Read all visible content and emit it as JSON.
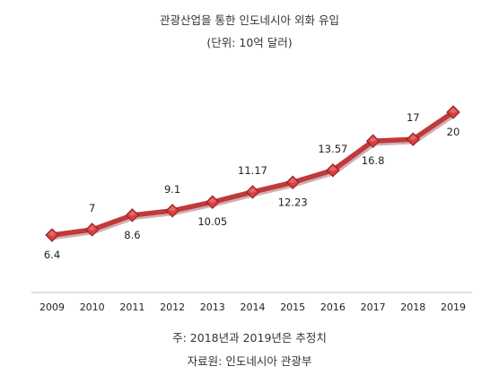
{
  "header": {
    "title": "관광산업을 통한 인도네시아 외화 유입",
    "subtitle": "(단위: 10억 달러)"
  },
  "footer": {
    "note": "주: 2018년과 2019년은 추정치",
    "source": "자료원: 인도네시아 관광부"
  },
  "chart_data": {
    "type": "line",
    "title": "관광산업을 통한 인도네시아 외화 유입",
    "subtitle": "(단위: 10억 달러)",
    "categories": [
      "2009",
      "2010",
      "2011",
      "2012",
      "2013",
      "2014",
      "2015",
      "2016",
      "2017",
      "2018",
      "2019"
    ],
    "series": [
      {
        "values": [
          6.4,
          7,
          8.6,
          9.1,
          10.05,
          11.17,
          12.23,
          13.57,
          16.8,
          17,
          20
        ],
        "labels": [
          "6.4",
          "7",
          "8.6",
          "9.1",
          "10.05",
          "11.17",
          "12.23",
          "13.57",
          "16.8",
          "17",
          "20"
        ],
        "label_positions": [
          "below",
          "above",
          "below",
          "above",
          "below",
          "above",
          "below",
          "above",
          "below",
          "above",
          "below"
        ]
      }
    ],
    "ylim": [
      0,
      24
    ],
    "grid": false,
    "legend": "none",
    "colors": {
      "line": "#c0393b",
      "marker": "#d9403f",
      "marker_edge": "#8e1f22",
      "axis": "#bfbfbf"
    }
  }
}
